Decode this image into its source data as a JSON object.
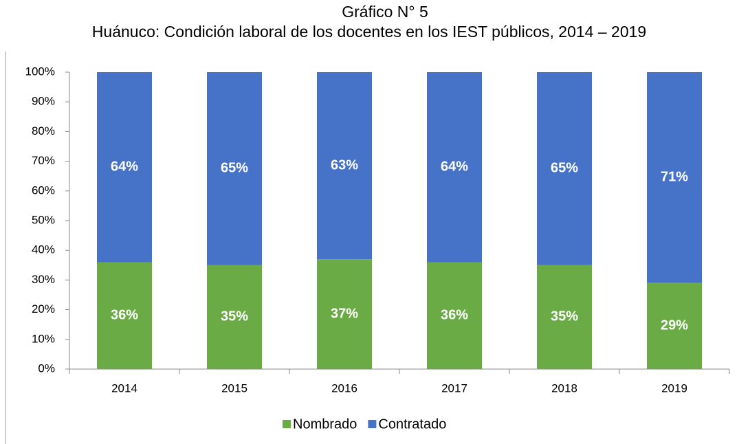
{
  "chart_data": {
    "type": "stacked-bar",
    "title": "Gráfico N° 5",
    "subtitle": "Huánuco: Condición laboral de los docentes en los IEST públicos, 2014 – 2019",
    "categories": [
      "2014",
      "2015",
      "2016",
      "2017",
      "2018",
      "2019"
    ],
    "series": [
      {
        "name": "Nombrado",
        "color": "#6aab45",
        "values": [
          36,
          35,
          37,
          36,
          35,
          29
        ],
        "value_labels": [
          "36%",
          "35%",
          "37%",
          "36%",
          "35%",
          "29%"
        ]
      },
      {
        "name": "Contratado",
        "color": "#4673c8",
        "values": [
          64,
          65,
          63,
          64,
          65,
          71
        ],
        "value_labels": [
          "64%",
          "65%",
          "63%",
          "64%",
          "65%",
          "71%"
        ]
      }
    ],
    "ylim": [
      0,
      100
    ],
    "yticks": [
      {
        "value": 0,
        "label": "0%"
      },
      {
        "value": 10,
        "label": "10%"
      },
      {
        "value": 20,
        "label": "20%"
      },
      {
        "value": 30,
        "label": "30%"
      },
      {
        "value": 40,
        "label": "40%"
      },
      {
        "value": 50,
        "label": "50%"
      },
      {
        "value": 60,
        "label": "60%"
      },
      {
        "value": 70,
        "label": "70%"
      },
      {
        "value": 80,
        "label": "80%"
      },
      {
        "value": 90,
        "label": "90%"
      },
      {
        "value": 100,
        "label": "100%"
      }
    ],
    "legend": "bottom"
  }
}
